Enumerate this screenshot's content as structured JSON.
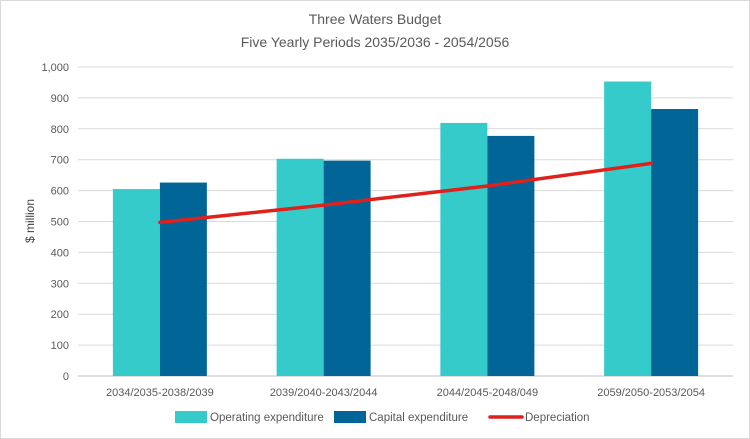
{
  "chart_data": {
    "type": "bar",
    "title": "Three Waters Budget",
    "subtitle": "Five Yearly Periods 2035/2036 - 2054/2056",
    "ylabel": "$ million",
    "xlabel": "",
    "ylim": [
      0,
      1000
    ],
    "yticks": [
      0,
      100,
      200,
      300,
      400,
      500,
      600,
      700,
      800,
      900,
      1000
    ],
    "ytick_labels": [
      "0",
      "100",
      "200",
      "300",
      "400",
      "500",
      "600",
      "700",
      "800",
      "900",
      "1,000"
    ],
    "categories": [
      "2034/2035-2038/2039",
      "2039/2040-2043/2044",
      "2044/2045-2048/049",
      "2059/2050-2053/2054"
    ],
    "series": [
      {
        "name": "Operating expenditure",
        "kind": "bar",
        "color": "#36cbcb",
        "values": [
          605,
          703,
          819,
          953
        ]
      },
      {
        "name": "Capital expenditure",
        "kind": "bar",
        "color": "#016597",
        "values": [
          626,
          697,
          777,
          864
        ]
      },
      {
        "name": "Depreciation",
        "kind": "line",
        "color": "#e0201b",
        "values": [
          497,
          553,
          615,
          688
        ]
      }
    ],
    "grid": true,
    "legend_position": "bottom"
  }
}
